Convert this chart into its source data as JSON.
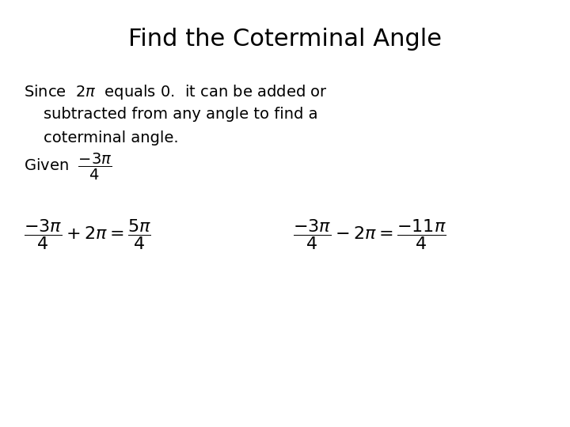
{
  "title": "Find the Coterminal Angle",
  "title_fontsize": 22,
  "background_color": "#ffffff",
  "text_color": "#000000",
  "body_fontsize": 14,
  "eq_fontsize": 16
}
